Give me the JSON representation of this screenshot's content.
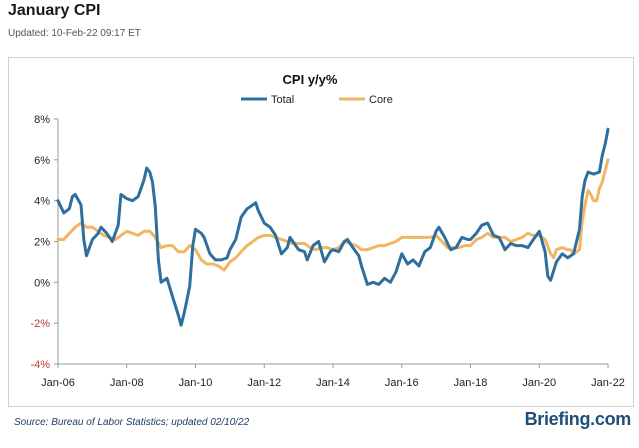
{
  "page": {
    "title": "January CPI",
    "updated": "Updated: 10-Feb-22 09:17 ET",
    "source": "Source: Bureau of Labor Statistics; updated 02/10/22",
    "brand": "Briefing.com"
  },
  "colors": {
    "total": "#2e6f9e",
    "core": "#f2b563",
    "negative_tick": "#c0392b",
    "axis": "#9a9a9a"
  },
  "chart_data": {
    "type": "line",
    "title": "CPI y/y%",
    "xlabel": "",
    "ylabel": "",
    "ylim": [
      -4,
      8
    ],
    "yticks": [
      -4,
      -2,
      0,
      2,
      4,
      6,
      8
    ],
    "ytick_labels": [
      "-4%",
      "-2%",
      "0%",
      "2%",
      "4%",
      "6%",
      "8%"
    ],
    "xlim": [
      2006.0,
      2022.0
    ],
    "xticks": [
      2006,
      2008,
      2010,
      2012,
      2014,
      2016,
      2018,
      2020,
      2022
    ],
    "xtick_labels": [
      "Jan-06",
      "Jan-08",
      "Jan-10",
      "Jan-12",
      "Jan-14",
      "Jan-16",
      "Jan-18",
      "Jan-20",
      "Jan-22"
    ],
    "grid": false,
    "legend_position": "top-center",
    "series": [
      {
        "name": "Total",
        "points": [
          [
            2006.0,
            4.0
          ],
          [
            2006.17,
            3.4
          ],
          [
            2006.33,
            3.6
          ],
          [
            2006.42,
            4.2
          ],
          [
            2006.5,
            4.3
          ],
          [
            2006.67,
            3.8
          ],
          [
            2006.75,
            2.1
          ],
          [
            2006.83,
            1.3
          ],
          [
            2007.0,
            2.1
          ],
          [
            2007.17,
            2.4
          ],
          [
            2007.25,
            2.7
          ],
          [
            2007.42,
            2.4
          ],
          [
            2007.58,
            2.0
          ],
          [
            2007.75,
            2.8
          ],
          [
            2007.83,
            4.3
          ],
          [
            2008.0,
            4.1
          ],
          [
            2008.17,
            4.0
          ],
          [
            2008.33,
            4.2
          ],
          [
            2008.5,
            5.0
          ],
          [
            2008.58,
            5.6
          ],
          [
            2008.67,
            5.4
          ],
          [
            2008.75,
            4.9
          ],
          [
            2008.83,
            3.7
          ],
          [
            2008.92,
            1.1
          ],
          [
            2009.0,
            0.0
          ],
          [
            2009.17,
            0.2
          ],
          [
            2009.33,
            -0.7
          ],
          [
            2009.5,
            -1.6
          ],
          [
            2009.58,
            -2.1
          ],
          [
            2009.67,
            -1.5
          ],
          [
            2009.83,
            -0.2
          ],
          [
            2009.92,
            1.8
          ],
          [
            2010.0,
            2.6
          ],
          [
            2010.17,
            2.4
          ],
          [
            2010.25,
            2.2
          ],
          [
            2010.42,
            1.4
          ],
          [
            2010.58,
            1.1
          ],
          [
            2010.75,
            1.1
          ],
          [
            2010.92,
            1.2
          ],
          [
            2011.0,
            1.6
          ],
          [
            2011.17,
            2.1
          ],
          [
            2011.33,
            3.2
          ],
          [
            2011.5,
            3.6
          ],
          [
            2011.67,
            3.8
          ],
          [
            2011.75,
            3.9
          ],
          [
            2011.83,
            3.5
          ],
          [
            2012.0,
            2.9
          ],
          [
            2012.17,
            2.7
          ],
          [
            2012.33,
            2.3
          ],
          [
            2012.5,
            1.4
          ],
          [
            2012.67,
            1.7
          ],
          [
            2012.75,
            2.2
          ],
          [
            2013.0,
            1.6
          ],
          [
            2013.17,
            1.5
          ],
          [
            2013.25,
            1.1
          ],
          [
            2013.42,
            1.8
          ],
          [
            2013.58,
            2.0
          ],
          [
            2013.75,
            1.0
          ],
          [
            2013.92,
            1.5
          ],
          [
            2014.0,
            1.6
          ],
          [
            2014.17,
            1.5
          ],
          [
            2014.33,
            2.0
          ],
          [
            2014.42,
            2.1
          ],
          [
            2014.58,
            1.7
          ],
          [
            2014.75,
            1.3
          ],
          [
            2014.83,
            0.8
          ],
          [
            2015.0,
            -0.1
          ],
          [
            2015.17,
            0.0
          ],
          [
            2015.33,
            -0.1
          ],
          [
            2015.5,
            0.2
          ],
          [
            2015.67,
            0.0
          ],
          [
            2015.83,
            0.5
          ],
          [
            2016.0,
            1.4
          ],
          [
            2016.17,
            0.9
          ],
          [
            2016.33,
            1.1
          ],
          [
            2016.5,
            0.8
          ],
          [
            2016.67,
            1.5
          ],
          [
            2016.83,
            1.7
          ],
          [
            2017.0,
            2.5
          ],
          [
            2017.08,
            2.7
          ],
          [
            2017.25,
            2.2
          ],
          [
            2017.42,
            1.6
          ],
          [
            2017.58,
            1.7
          ],
          [
            2017.75,
            2.2
          ],
          [
            2017.92,
            2.1
          ],
          [
            2018.0,
            2.1
          ],
          [
            2018.17,
            2.4
          ],
          [
            2018.33,
            2.8
          ],
          [
            2018.5,
            2.9
          ],
          [
            2018.67,
            2.3
          ],
          [
            2018.83,
            2.2
          ],
          [
            2018.92,
            1.9
          ],
          [
            2019.0,
            1.6
          ],
          [
            2019.17,
            1.9
          ],
          [
            2019.33,
            1.8
          ],
          [
            2019.5,
            1.8
          ],
          [
            2019.67,
            1.7
          ],
          [
            2019.83,
            2.1
          ],
          [
            2020.0,
            2.5
          ],
          [
            2020.17,
            1.5
          ],
          [
            2020.25,
            0.3
          ],
          [
            2020.33,
            0.1
          ],
          [
            2020.5,
            1.0
          ],
          [
            2020.67,
            1.4
          ],
          [
            2020.83,
            1.2
          ],
          [
            2021.0,
            1.4
          ],
          [
            2021.17,
            2.6
          ],
          [
            2021.25,
            4.2
          ],
          [
            2021.33,
            5.0
          ],
          [
            2021.42,
            5.4
          ],
          [
            2021.58,
            5.3
          ],
          [
            2021.75,
            5.4
          ],
          [
            2021.83,
            6.2
          ],
          [
            2021.92,
            6.8
          ],
          [
            2022.0,
            7.5
          ]
        ]
      },
      {
        "name": "Core",
        "points": [
          [
            2006.0,
            2.1
          ],
          [
            2006.17,
            2.1
          ],
          [
            2006.33,
            2.4
          ],
          [
            2006.5,
            2.7
          ],
          [
            2006.67,
            2.9
          ],
          [
            2006.83,
            2.7
          ],
          [
            2007.0,
            2.7
          ],
          [
            2007.17,
            2.5
          ],
          [
            2007.33,
            2.3
          ],
          [
            2007.5,
            2.2
          ],
          [
            2007.67,
            2.1
          ],
          [
            2007.83,
            2.3
          ],
          [
            2008.0,
            2.5
          ],
          [
            2008.17,
            2.4
          ],
          [
            2008.33,
            2.3
          ],
          [
            2008.5,
            2.5
          ],
          [
            2008.67,
            2.5
          ],
          [
            2008.83,
            2.2
          ],
          [
            2009.0,
            1.7
          ],
          [
            2009.17,
            1.8
          ],
          [
            2009.33,
            1.8
          ],
          [
            2009.5,
            1.5
          ],
          [
            2009.67,
            1.5
          ],
          [
            2009.83,
            1.8
          ],
          [
            2010.0,
            1.6
          ],
          [
            2010.17,
            1.1
          ],
          [
            2010.33,
            0.9
          ],
          [
            2010.5,
            0.9
          ],
          [
            2010.67,
            0.8
          ],
          [
            2010.83,
            0.6
          ],
          [
            2010.92,
            0.8
          ],
          [
            2011.0,
            1.0
          ],
          [
            2011.17,
            1.2
          ],
          [
            2011.33,
            1.5
          ],
          [
            2011.5,
            1.8
          ],
          [
            2011.67,
            2.0
          ],
          [
            2011.83,
            2.2
          ],
          [
            2012.0,
            2.3
          ],
          [
            2012.17,
            2.3
          ],
          [
            2012.33,
            2.2
          ],
          [
            2012.5,
            2.1
          ],
          [
            2012.67,
            2.0
          ],
          [
            2012.83,
            1.9
          ],
          [
            2013.0,
            1.9
          ],
          [
            2013.17,
            1.9
          ],
          [
            2013.33,
            1.7
          ],
          [
            2013.5,
            1.6
          ],
          [
            2013.67,
            1.7
          ],
          [
            2013.83,
            1.7
          ],
          [
            2014.0,
            1.6
          ],
          [
            2014.17,
            1.7
          ],
          [
            2014.33,
            2.0
          ],
          [
            2014.5,
            1.9
          ],
          [
            2014.67,
            1.8
          ],
          [
            2014.83,
            1.6
          ],
          [
            2015.0,
            1.6
          ],
          [
            2015.17,
            1.7
          ],
          [
            2015.33,
            1.8
          ],
          [
            2015.5,
            1.8
          ],
          [
            2015.67,
            1.9
          ],
          [
            2015.83,
            2.0
          ],
          [
            2016.0,
            2.2
          ],
          [
            2016.17,
            2.2
          ],
          [
            2016.33,
            2.2
          ],
          [
            2016.5,
            2.2
          ],
          [
            2016.67,
            2.2
          ],
          [
            2016.83,
            2.2
          ],
          [
            2017.0,
            2.3
          ],
          [
            2017.17,
            2.0
          ],
          [
            2017.33,
            1.7
          ],
          [
            2017.5,
            1.7
          ],
          [
            2017.67,
            1.7
          ],
          [
            2017.83,
            1.8
          ],
          [
            2018.0,
            1.8
          ],
          [
            2018.17,
            2.1
          ],
          [
            2018.33,
            2.2
          ],
          [
            2018.5,
            2.4
          ],
          [
            2018.67,
            2.2
          ],
          [
            2018.83,
            2.2
          ],
          [
            2019.0,
            2.2
          ],
          [
            2019.17,
            2.0
          ],
          [
            2019.33,
            2.1
          ],
          [
            2019.5,
            2.2
          ],
          [
            2019.67,
            2.4
          ],
          [
            2019.83,
            2.3
          ],
          [
            2020.0,
            2.3
          ],
          [
            2020.17,
            2.1
          ],
          [
            2020.33,
            1.4
          ],
          [
            2020.42,
            1.2
          ],
          [
            2020.5,
            1.6
          ],
          [
            2020.67,
            1.7
          ],
          [
            2020.83,
            1.6
          ],
          [
            2020.92,
            1.6
          ],
          [
            2021.0,
            1.4
          ],
          [
            2021.17,
            1.6
          ],
          [
            2021.25,
            3.0
          ],
          [
            2021.33,
            3.8
          ],
          [
            2021.42,
            4.5
          ],
          [
            2021.5,
            4.3
          ],
          [
            2021.58,
            4.0
          ],
          [
            2021.67,
            4.0
          ],
          [
            2021.75,
            4.6
          ],
          [
            2021.83,
            4.9
          ],
          [
            2021.92,
            5.5
          ],
          [
            2022.0,
            6.0
          ]
        ]
      }
    ]
  }
}
